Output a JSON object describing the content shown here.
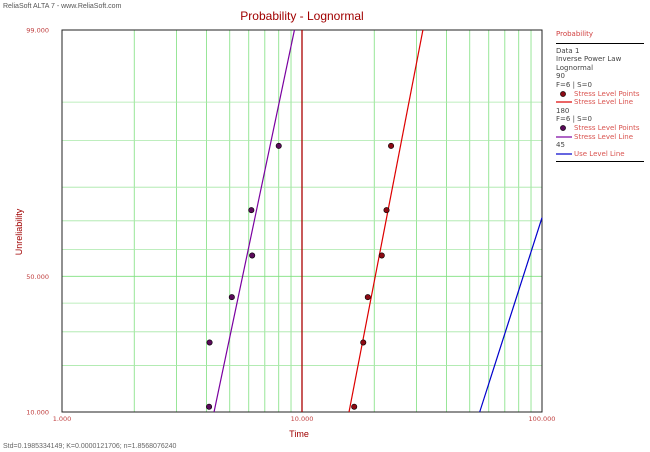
{
  "header": {
    "software": "ReliaSoft ALTA 7 - www.ReliaSoft.com"
  },
  "footer": {
    "params": "Std=0.1985334149; K=0.0000121706; n=1.8568076240"
  },
  "legend": {
    "title": "Probability",
    "lines": [
      "Data 1",
      "Inverse Power Law",
      "Lognormal"
    ],
    "groups": [
      {
        "stress": "90",
        "counts": "F=6 | S=0",
        "points_label": "Stress Level Points",
        "line_label": "Stress Level Line",
        "point_color": "#8b0a14",
        "line_color": "#dd0000"
      },
      {
        "stress": "180",
        "counts": "F=6 | S=0",
        "points_label": "Stress Level Points",
        "line_label": "Stress Level Line",
        "point_color": "#5a0a5a",
        "line_color": "#7a00a0"
      }
    ],
    "use_level": "45",
    "use_level_label": "Use Level Line",
    "use_level_color": "#0000cc"
  },
  "chart_data": {
    "type": "scatter",
    "title": "Probability - Lognormal",
    "xlabel": "Time",
    "ylabel": "Unreliability",
    "x_scale": "log",
    "y_scale": "lognormal-probability",
    "xlim": [
      1,
      100
    ],
    "ylim": [
      10,
      99
    ],
    "x_tick_labels": [
      "1.000",
      "10.000",
      "100.000"
    ],
    "y_tick_labels": [
      "10.000",
      "50.000",
      "99.000"
    ],
    "grid": true,
    "legend_position": "right",
    "vertical_reference_line": {
      "x": 10,
      "color": "#aa0000"
    },
    "series": [
      {
        "name": "90",
        "kind": "points",
        "color": "#8b0a14",
        "points": [
          {
            "x": 16.5,
            "y": 10.9
          },
          {
            "x": 18.0,
            "y": 26.6
          },
          {
            "x": 18.8,
            "y": 42.2
          },
          {
            "x": 21.5,
            "y": 57.8
          },
          {
            "x": 22.5,
            "y": 73.4
          },
          {
            "x": 23.5,
            "y": 89.1
          }
        ]
      },
      {
        "name": "90",
        "kind": "line",
        "color": "#dd0000",
        "points": [
          {
            "x": 15.7,
            "y": 10
          },
          {
            "x": 31.9,
            "y": 99
          }
        ]
      },
      {
        "name": "180",
        "kind": "points",
        "color": "#5a0a5a",
        "points": [
          {
            "x": 4.1,
            "y": 10.9
          },
          {
            "x": 4.12,
            "y": 26.6
          },
          {
            "x": 5.1,
            "y": 42.2
          },
          {
            "x": 6.2,
            "y": 57.8
          },
          {
            "x": 6.15,
            "y": 73.4
          },
          {
            "x": 8.0,
            "y": 89.1
          }
        ]
      },
      {
        "name": "180",
        "kind": "line",
        "color": "#7a00a0",
        "points": [
          {
            "x": 4.3,
            "y": 10
          },
          {
            "x": 9.3,
            "y": 99
          }
        ]
      },
      {
        "name": "45",
        "kind": "line",
        "color": "#0000cc",
        "points": [
          {
            "x": 55.0,
            "y": 10
          },
          {
            "x": 100.0,
            "y": 71
          }
        ]
      }
    ]
  }
}
